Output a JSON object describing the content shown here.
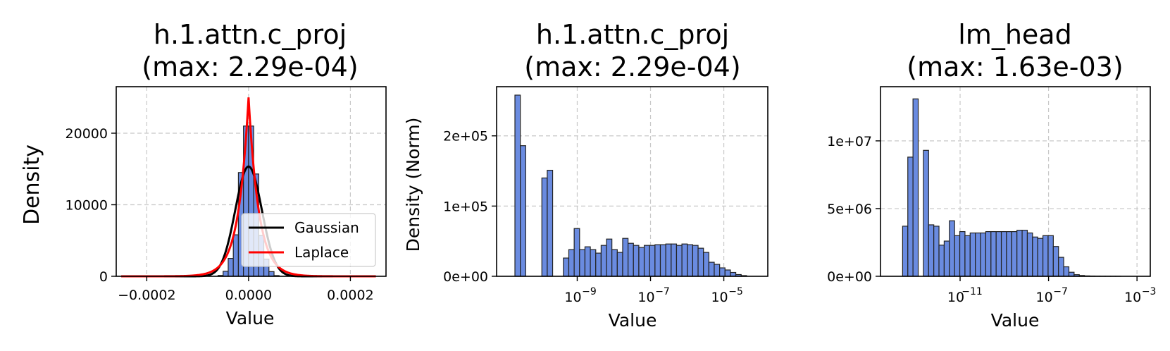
{
  "chart_data": [
    {
      "type": "histogram",
      "title_line1": "h.1.attn.c_proj",
      "title_line2": "(max: 2.29e-04)",
      "xlabel": "Value",
      "ylabel": "Density",
      "xscale": "linear",
      "xlim": [
        -0.00026,
        0.00027
      ],
      "ylim": [
        0,
        26500
      ],
      "xticks": [
        -0.0002,
        0.0,
        0.0002
      ],
      "xtick_labels": [
        "−0.0002",
        "0.0000",
        "0.0002"
      ],
      "yticks": [
        0,
        10000,
        20000
      ],
      "ytick_labels": [
        "0",
        "10000",
        "20000"
      ],
      "bar_color": "#6a8be0",
      "bar_edge": "#222222",
      "bins": [
        {
          "x0": -6e-05,
          "x1": -5e-05,
          "density": 120
        },
        {
          "x0": -5e-05,
          "x1": -4e-05,
          "density": 700
        },
        {
          "x0": -4e-05,
          "x1": -3e-05,
          "density": 2500
        },
        {
          "x0": -3e-05,
          "x1": -2e-05,
          "density": 5800
        },
        {
          "x0": -2e-05,
          "x1": -1e-05,
          "density": 14500
        },
        {
          "x0": -1e-05,
          "x1": 0.0,
          "density": 21000
        },
        {
          "x0": 0.0,
          "x1": 1e-05,
          "density": 21000
        },
        {
          "x0": 1e-05,
          "x1": 2e-05,
          "density": 14300
        },
        {
          "x0": 2e-05,
          "x1": 3e-05,
          "density": 5700
        },
        {
          "x0": 3e-05,
          "x1": 4e-05,
          "density": 2400
        },
        {
          "x0": 4e-05,
          "x1": 5e-05,
          "density": 650
        },
        {
          "x0": 5e-05,
          "x1": 6e-05,
          "density": 100
        }
      ],
      "fits": [
        {
          "name": "Gaussian",
          "kind": "gaussian",
          "sigma": 2.6e-05,
          "color": "#000000"
        },
        {
          "name": "Laplace",
          "kind": "laplace",
          "b": 2e-05,
          "color": "#ff0000"
        }
      ],
      "legend_position": "lower-right",
      "grid": true
    },
    {
      "type": "histogram",
      "title_line1": "h.1.attn.c_proj",
      "title_line2": "(max: 2.29e-04)",
      "xlabel": "Value",
      "ylabel": "Density (Norm)",
      "xscale": "log",
      "xlim_log10": [
        -11.2,
        -3.8
      ],
      "ylim": [
        0,
        270000
      ],
      "xticks_log10": [
        -9,
        -7,
        -5
      ],
      "yticks": [
        0,
        100000,
        200000
      ],
      "ytick_labels": [
        "0e+00",
        "1e+05",
        "2e+05"
      ],
      "bar_color": "#6a8be0",
      "bar_edge": "#222222",
      "bin_edges_log10_start": -10.7,
      "bin_width_log10": 0.147,
      "values": [
        258000,
        186000,
        0,
        0,
        0,
        140000,
        151000,
        0,
        0,
        26000,
        38000,
        68000,
        38000,
        42000,
        38000,
        33000,
        44000,
        53000,
        38000,
        34000,
        54000,
        47000,
        44000,
        41000,
        44000,
        44000,
        45000,
        45000,
        46000,
        46000,
        44000,
        46000,
        45000,
        44000,
        40000,
        34000,
        20000,
        17000,
        12000,
        9000,
        5500,
        2500,
        1000
      ]
    },
    {
      "type": "histogram",
      "title_line1": "lm_head",
      "title_line2": "(max: 1.63e-03)",
      "xlabel": "Value",
      "ylabel": "",
      "xscale": "log",
      "xlim_log10": [
        -14.6,
        -2.4
      ],
      "ylim": [
        0,
        14000000
      ],
      "xticks_log10": [
        -11,
        -7,
        -3
      ],
      "yticks": [
        0,
        5000000,
        10000000
      ],
      "ytick_labels": [
        "0e+00",
        "5e+06",
        "1e+07"
      ],
      "bar_color": "#6a8be0",
      "bar_edge": "#222222",
      "bin_edges_log10_start": -13.6,
      "bin_width_log10": 0.235,
      "values": [
        3700000,
        8800000,
        13100000,
        0,
        9300000,
        3800000,
        3700000,
        2300000,
        2600000,
        4100000,
        3000000,
        3300000,
        3000000,
        3200000,
        3200000,
        3200000,
        3300000,
        3300000,
        3300000,
        3300000,
        3300000,
        3300000,
        3400000,
        3400000,
        3200000,
        2900000,
        2800000,
        3000000,
        3000000,
        2200000,
        1400000,
        700000,
        300000,
        120000,
        60000,
        30000,
        20000,
        10000,
        5000,
        3000,
        2000,
        1000
      ]
    }
  ]
}
